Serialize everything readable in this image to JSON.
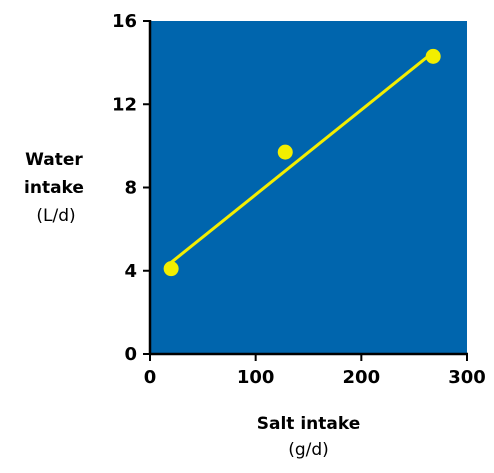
{
  "chart_data": {
    "type": "scatter",
    "x_label_lines": [
      "Salt intake"
    ],
    "x_unit": "(g/d)",
    "y_label_lines": [
      "Water",
      "intake"
    ],
    "y_unit": "(L/d)",
    "xlim": [
      0,
      300
    ],
    "ylim": [
      0,
      16
    ],
    "x_ticks": [
      0,
      100,
      200,
      300
    ],
    "y_ticks": [
      0,
      4,
      8,
      12,
      16
    ],
    "points": [
      {
        "x": 20,
        "y": 4.1
      },
      {
        "x": 128,
        "y": 9.7
      },
      {
        "x": 268,
        "y": 14.3
      }
    ],
    "trend_line": {
      "x": [
        20,
        268
      ],
      "y": [
        4.4,
        14.5
      ]
    },
    "grid": false,
    "colors": {
      "plot_background": "#0065ad",
      "marker": "#f3ee00",
      "line": "#f3ee00",
      "axis": "#000000"
    }
  }
}
